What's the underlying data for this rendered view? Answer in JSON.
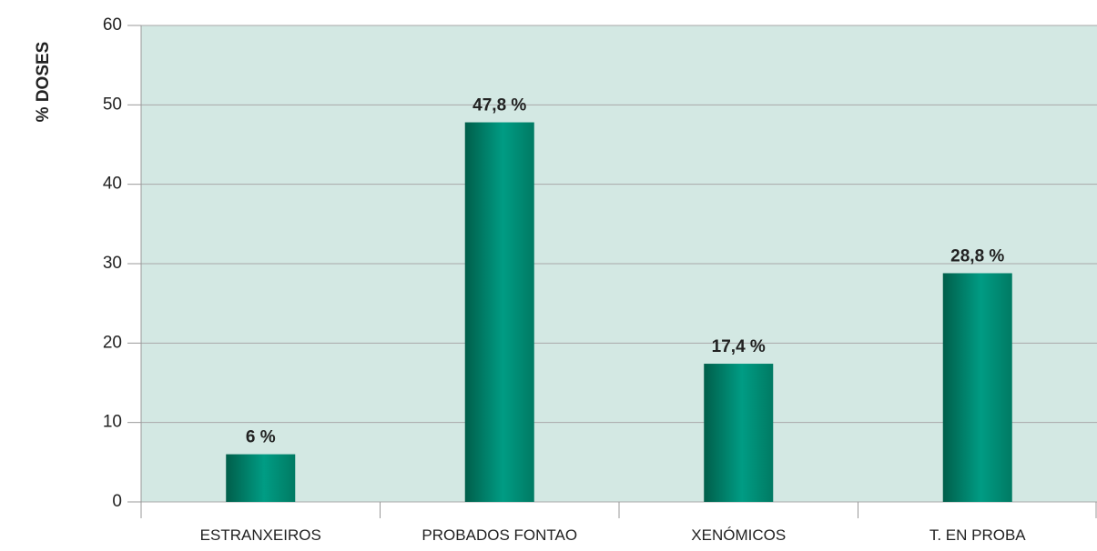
{
  "chart_data": {
    "type": "bar",
    "y_label": "% DOSES",
    "categories": [
      "ESTRANXEIROS",
      "PROBADOS FONTAO",
      "XENÓMICOS",
      "T. EN PROBA"
    ],
    "values": [
      6,
      47.8,
      17.4,
      28.8
    ],
    "value_labels": [
      "6 %",
      "47,8 %",
      "17,4 %",
      "28,8 %"
    ],
    "color": "#008c73",
    "ylim": [
      0,
      60
    ],
    "yticks": [
      0,
      10,
      20,
      30,
      40,
      50,
      60
    ],
    "grid": true
  }
}
